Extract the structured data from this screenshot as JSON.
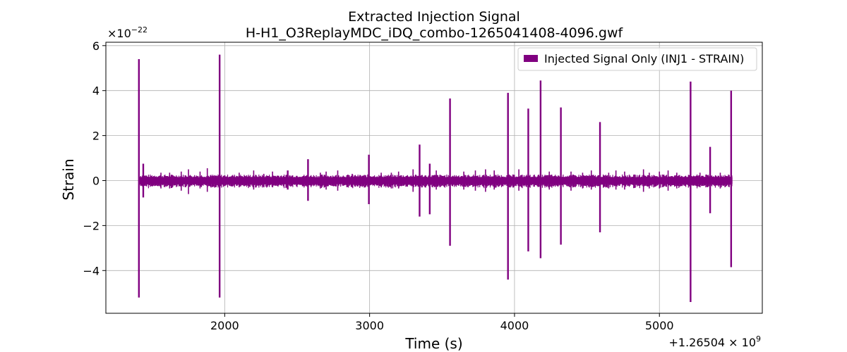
{
  "chart_data": {
    "type": "line",
    "title": "Extracted Injection Signal",
    "subtitle": "H-H1_O3ReplayMDC_iDQ_combo-1265041408-4096.gwf",
    "xlabel": "Time (s)",
    "ylabel": "Strain",
    "x_offset_label": "+1.26504 × 10",
    "x_offset_exponent": "9",
    "y_scale_label": "×10",
    "y_scale_exponent": "−22",
    "xlim": [
      1180,
      5710
    ],
    "ylim": [
      -5.9,
      6.15
    ],
    "x_ticks": [
      2000,
      3000,
      4000,
      5000
    ],
    "x_tick_labels": [
      "2000",
      "3000",
      "4000",
      "5000"
    ],
    "y_ticks": [
      -4,
      -2,
      0,
      2,
      4,
      6
    ],
    "y_tick_labels": [
      "−4",
      "−2",
      "0",
      "2",
      "4",
      "6"
    ],
    "grid": true,
    "legend_position": "top-right",
    "series": [
      {
        "name": "Injected Signal Only (INJ1 - STRAIN)",
        "color": "#800080",
        "x_range": [
          1408,
          5504
        ],
        "baseline_amplitude": 0.15,
        "spikes": [
          {
            "t": 1408,
            "max": 5.4,
            "min": -5.2
          },
          {
            "t": 1438,
            "max": 0.75,
            "min": -0.75
          },
          {
            "t": 1965,
            "max": 5.6,
            "min": -5.2
          },
          {
            "t": 2435,
            "max": 0.45,
            "min": -0.4
          },
          {
            "t": 2575,
            "max": 0.95,
            "min": -0.9
          },
          {
            "t": 2995,
            "max": 1.15,
            "min": -1.05
          },
          {
            "t": 3345,
            "max": 1.6,
            "min": -1.6
          },
          {
            "t": 3415,
            "max": 0.75,
            "min": -1.5
          },
          {
            "t": 3555,
            "max": 3.65,
            "min": -2.9
          },
          {
            "t": 3955,
            "max": 3.9,
            "min": -4.4
          },
          {
            "t": 4095,
            "max": 3.2,
            "min": -3.15
          },
          {
            "t": 4180,
            "max": 4.45,
            "min": -3.45
          },
          {
            "t": 4320,
            "max": 3.25,
            "min": -2.85
          },
          {
            "t": 4590,
            "max": 2.6,
            "min": -2.3
          },
          {
            "t": 5215,
            "max": 4.4,
            "min": -5.4
          },
          {
            "t": 5350,
            "max": 1.5,
            "min": -1.45
          },
          {
            "t": 5495,
            "max": 4.0,
            "min": -3.85
          }
        ],
        "minor_bursts": [
          {
            "t": 1560,
            "max": 0.35,
            "min": -0.35
          },
          {
            "t": 1620,
            "max": 0.35,
            "min": -0.35
          },
          {
            "t": 1700,
            "max": 0.4,
            "min": -0.45
          },
          {
            "t": 1750,
            "max": 0.5,
            "min": -0.6
          },
          {
            "t": 1830,
            "max": 0.4,
            "min": -0.35
          },
          {
            "t": 1880,
            "max": 0.55,
            "min": -0.5
          },
          {
            "t": 2100,
            "max": 0.35,
            "min": -0.3
          },
          {
            "t": 2200,
            "max": 0.45,
            "min": -0.4
          },
          {
            "t": 2270,
            "max": 0.3,
            "min": -0.3
          },
          {
            "t": 2330,
            "max": 0.4,
            "min": -0.3
          },
          {
            "t": 2660,
            "max": 0.35,
            "min": -0.35
          },
          {
            "t": 2700,
            "max": 0.4,
            "min": -0.4
          },
          {
            "t": 2780,
            "max": 0.45,
            "min": -0.45
          },
          {
            "t": 2880,
            "max": 0.3,
            "min": -0.3
          },
          {
            "t": 3080,
            "max": 0.35,
            "min": -0.3
          },
          {
            "t": 3150,
            "max": 0.35,
            "min": -0.35
          },
          {
            "t": 3200,
            "max": 0.4,
            "min": -0.35
          },
          {
            "t": 3300,
            "max": 0.5,
            "min": -0.5
          },
          {
            "t": 3460,
            "max": 0.45,
            "min": -0.4
          },
          {
            "t": 3650,
            "max": 0.4,
            "min": -0.4
          },
          {
            "t": 3730,
            "max": 0.45,
            "min": -0.45
          },
          {
            "t": 3800,
            "max": 0.5,
            "min": -0.5
          },
          {
            "t": 3860,
            "max": 0.45,
            "min": -0.4
          },
          {
            "t": 4030,
            "max": 0.5,
            "min": -0.45
          },
          {
            "t": 4240,
            "max": 0.4,
            "min": -0.4
          },
          {
            "t": 4390,
            "max": 0.4,
            "min": -0.45
          },
          {
            "t": 4470,
            "max": 0.35,
            "min": -0.35
          },
          {
            "t": 4530,
            "max": 0.45,
            "min": -0.4
          },
          {
            "t": 4650,
            "max": 0.35,
            "min": -0.35
          },
          {
            "t": 4700,
            "max": 0.45,
            "min": -0.4
          },
          {
            "t": 4760,
            "max": 0.4,
            "min": -0.4
          },
          {
            "t": 4890,
            "max": 0.5,
            "min": -0.5
          },
          {
            "t": 4930,
            "max": 0.35,
            "min": -0.35
          },
          {
            "t": 5000,
            "max": 0.4,
            "min": -0.35
          },
          {
            "t": 5060,
            "max": 0.45,
            "min": -0.45
          },
          {
            "t": 5120,
            "max": 0.35,
            "min": -0.35
          },
          {
            "t": 5280,
            "max": 0.35,
            "min": -0.3
          },
          {
            "t": 5420,
            "max": 0.35,
            "min": -0.35
          }
        ]
      }
    ]
  },
  "colors": {
    "series": "#800080",
    "grid": "#b0b0b0",
    "axes": "#000000",
    "legend_border": "#cccccc"
  }
}
